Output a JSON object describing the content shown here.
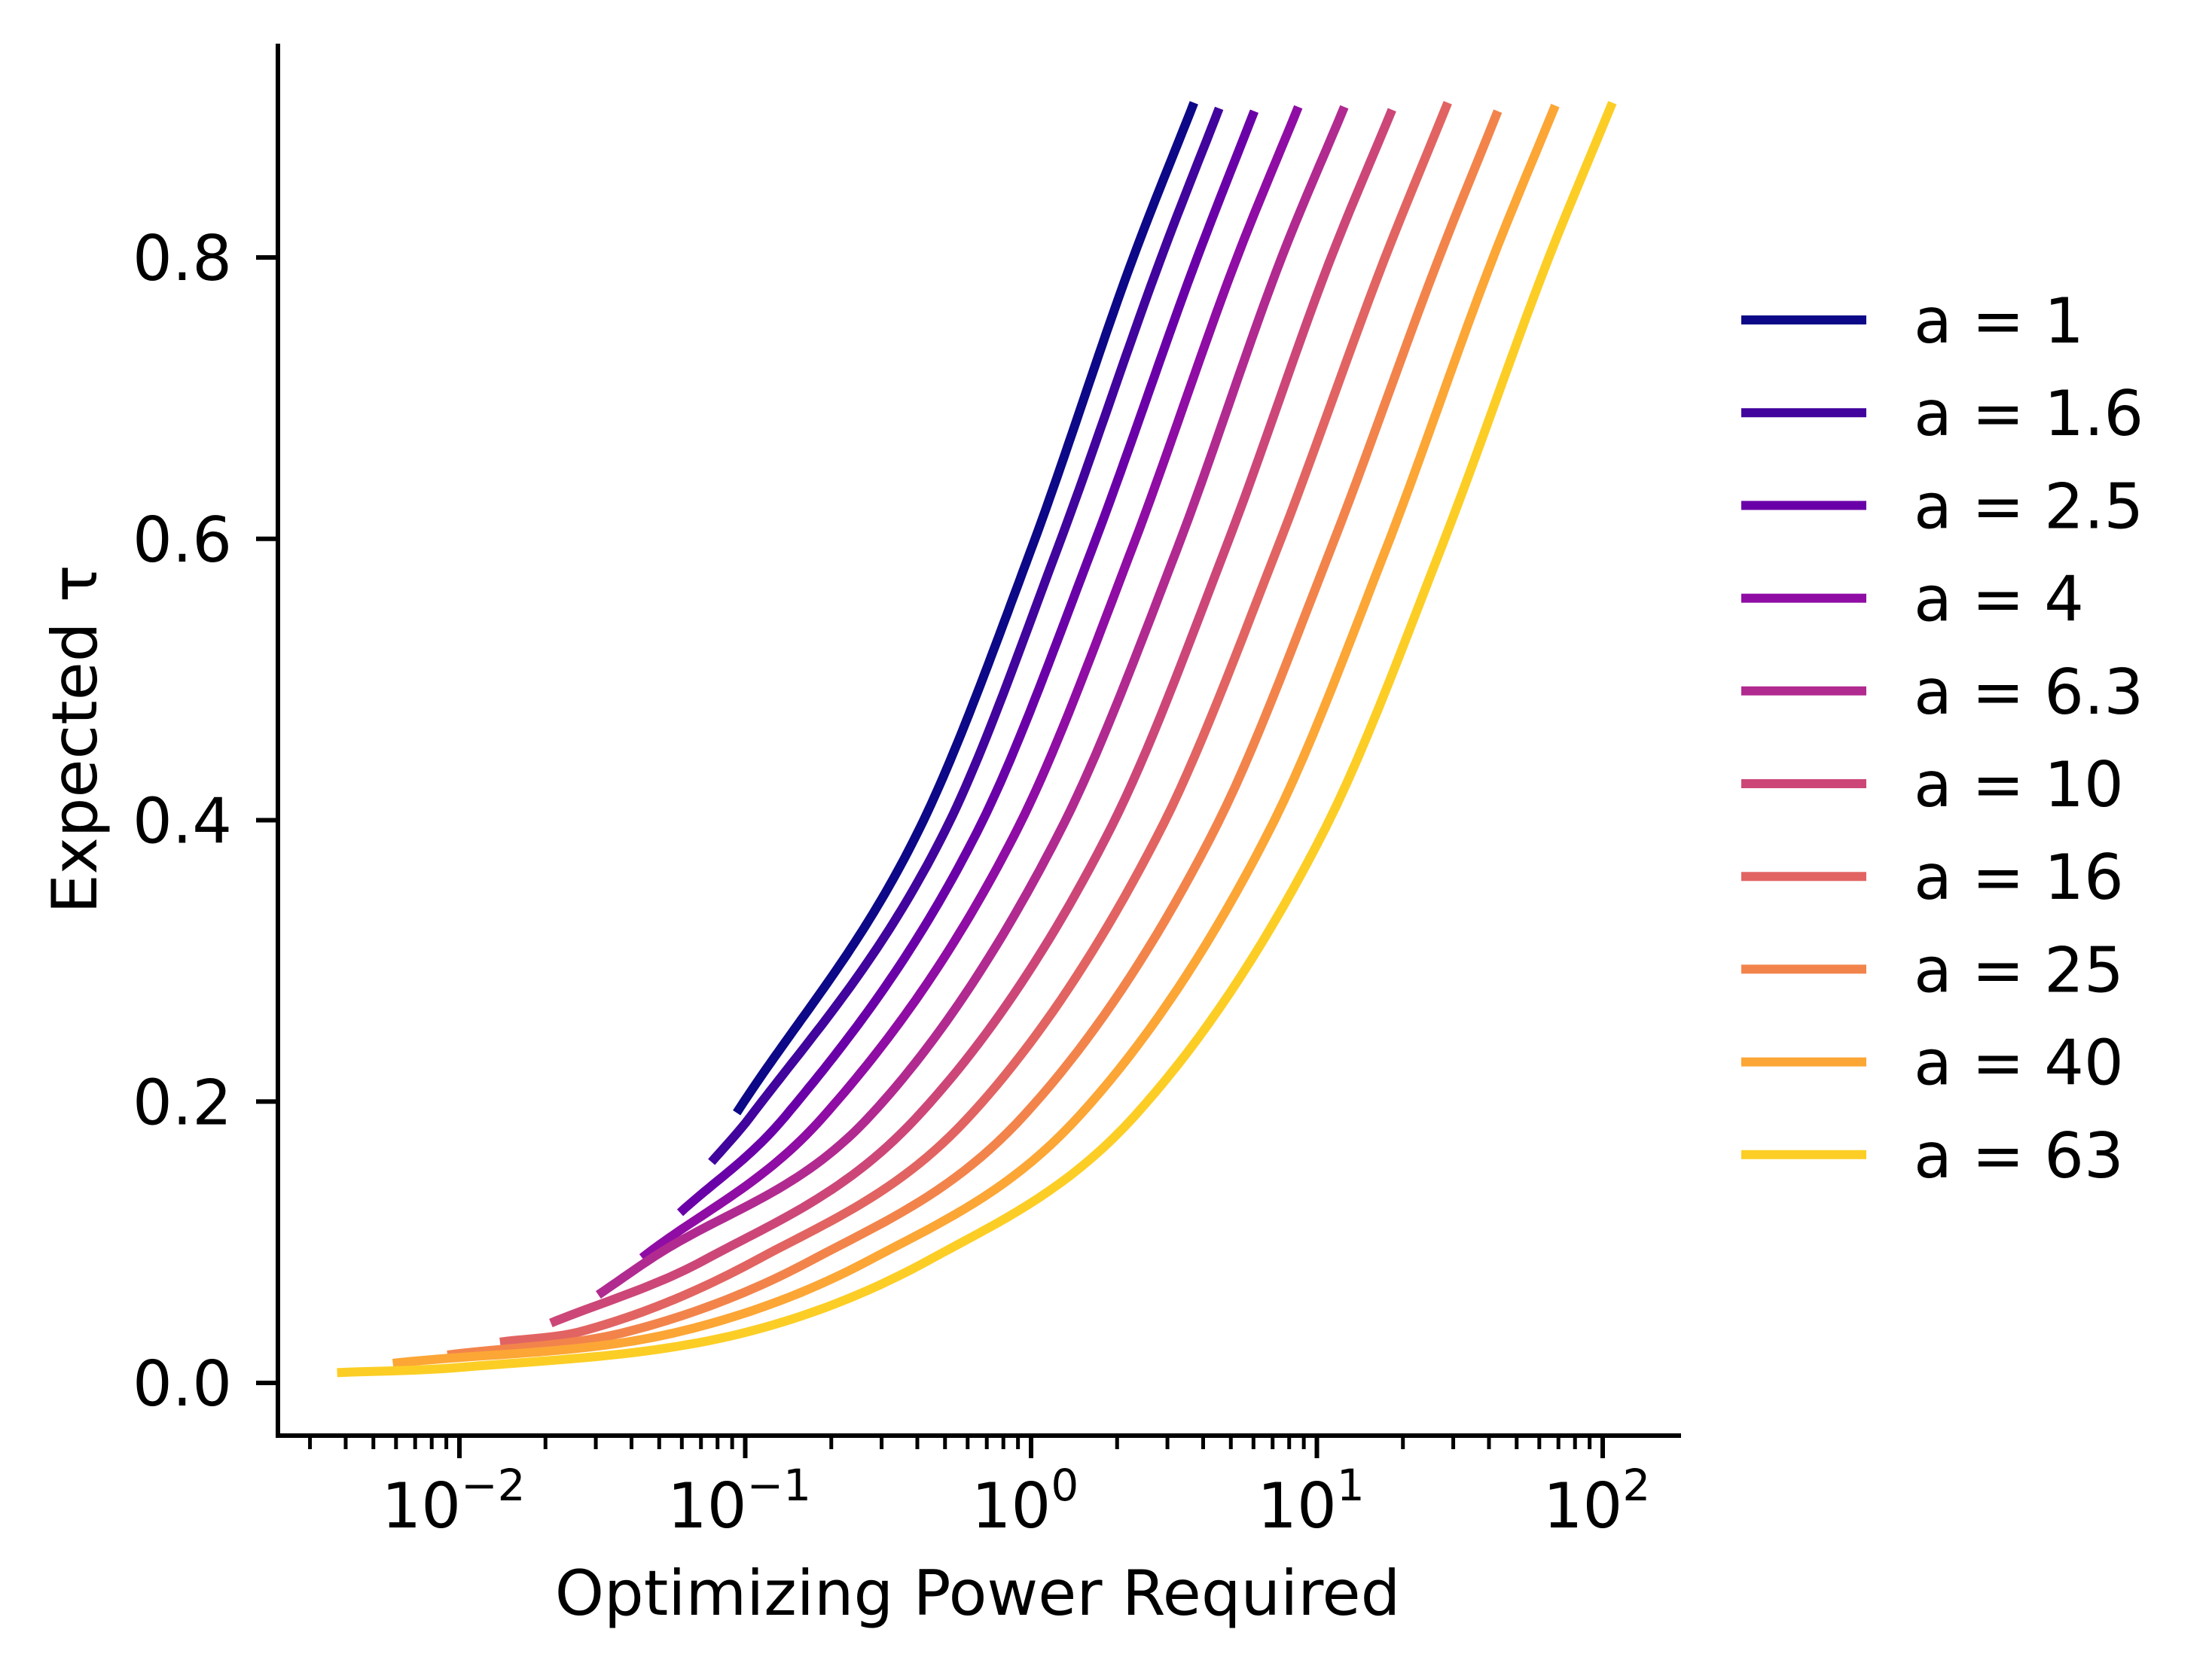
{
  "chart_data": {
    "type": "line",
    "title": "",
    "xlabel": "Optimizing Power Required",
    "ylabel": "Expected τ",
    "xscale": "log",
    "xlim_log10": [
      -2.635,
      2.274
    ],
    "ylim": [
      -0.0375,
      0.952
    ],
    "grid": false,
    "legend_placement": "outside-right",
    "x_ticks": {
      "base": "10",
      "exponents": [
        "−2",
        "−1",
        "0",
        "1",
        "2"
      ],
      "log10_values": [
        -2,
        -1,
        0,
        1,
        2
      ]
    },
    "y_ticks": {
      "values": [
        0.0,
        0.2,
        0.4,
        0.6,
        0.8
      ],
      "labels": [
        "0.0",
        "0.2",
        "0.4",
        "0.6",
        "0.8"
      ]
    },
    "series": [
      {
        "name": "a = 1",
        "color": "#0d0887",
        "log10_x": [
          -1.03,
          -0.395,
          0.003,
          0.352,
          0.57
        ],
        "y": [
          0.192,
          0.392,
          0.594,
          0.797,
          0.91
        ]
      },
      {
        "name": "a = 1.6",
        "color": "#41049d",
        "log10_x": [
          -1.118,
          -0.983,
          -0.302,
          0.094,
          0.45,
          0.658
        ],
        "y": [
          0.157,
          0.189,
          0.392,
          0.594,
          0.797,
          0.906
        ]
      },
      {
        "name": "a = 2.5",
        "color": "#6a00a8",
        "log10_x": [
          -1.228,
          -0.862,
          -0.188,
          0.216,
          0.576,
          0.781
        ],
        "y": [
          0.121,
          0.189,
          0.392,
          0.594,
          0.797,
          0.904
        ]
      },
      {
        "name": "a = 4",
        "color": "#8f0da4",
        "log10_x": [
          -1.361,
          -0.728,
          -0.052,
          0.355,
          0.715,
          0.935
        ],
        "y": [
          0.089,
          0.189,
          0.392,
          0.594,
          0.797,
          0.907
        ]
      },
      {
        "name": "a = 6.3",
        "color": "#b12a90",
        "log10_x": [
          -1.514,
          -1.338,
          -0.567,
          0.101,
          0.513,
          0.871,
          1.096
        ],
        "y": [
          0.0626,
          0.0872,
          0.189,
          0.392,
          0.594,
          0.797,
          0.907
        ]
      },
      {
        "name": "a = 10",
        "color": "#cc4778",
        "log10_x": [
          -1.68,
          -1.144,
          -0.399,
          0.273,
          0.682,
          1.044,
          1.263
        ],
        "y": [
          0.0426,
          0.0872,
          0.189,
          0.392,
          0.594,
          0.797,
          0.905
        ]
      },
      {
        "name": "a = 16",
        "color": "#e16462",
        "log10_x": [
          -1.858,
          -1.569,
          -0.962,
          -0.218,
          0.45,
          0.863,
          1.233,
          1.458
        ],
        "y": [
          0.029,
          0.0369,
          0.0872,
          0.189,
          0.392,
          0.594,
          0.797,
          0.91
        ]
      },
      {
        "name": "a = 25",
        "color": "#f2844b",
        "log10_x": [
          -2.042,
          -1.403,
          -0.768,
          -0.03,
          0.639,
          1.051,
          1.422,
          1.633
        ],
        "y": [
          0.0198,
          0.0369,
          0.0872,
          0.189,
          0.392,
          0.594,
          0.797,
          0.904
        ]
      },
      {
        "name": "a = 40",
        "color": "#fca636",
        "log10_x": [
          -2.233,
          -1.221,
          -0.566,
          0.165,
          0.832,
          1.244,
          1.611,
          1.834
        ],
        "y": [
          0.0139,
          0.0369,
          0.0872,
          0.189,
          0.392,
          0.594,
          0.797,
          0.908
        ]
      },
      {
        "name": "a = 63",
        "color": "#fcce25",
        "log10_x": [
          -2.428,
          -2.0,
          -0.98,
          -0.358,
          0.359,
          1.024,
          1.436,
          1.806,
          2.034
        ],
        "y": [
          0.0073,
          0.011,
          0.0369,
          0.0872,
          0.189,
          0.392,
          0.594,
          0.797,
          0.91
        ]
      }
    ]
  }
}
